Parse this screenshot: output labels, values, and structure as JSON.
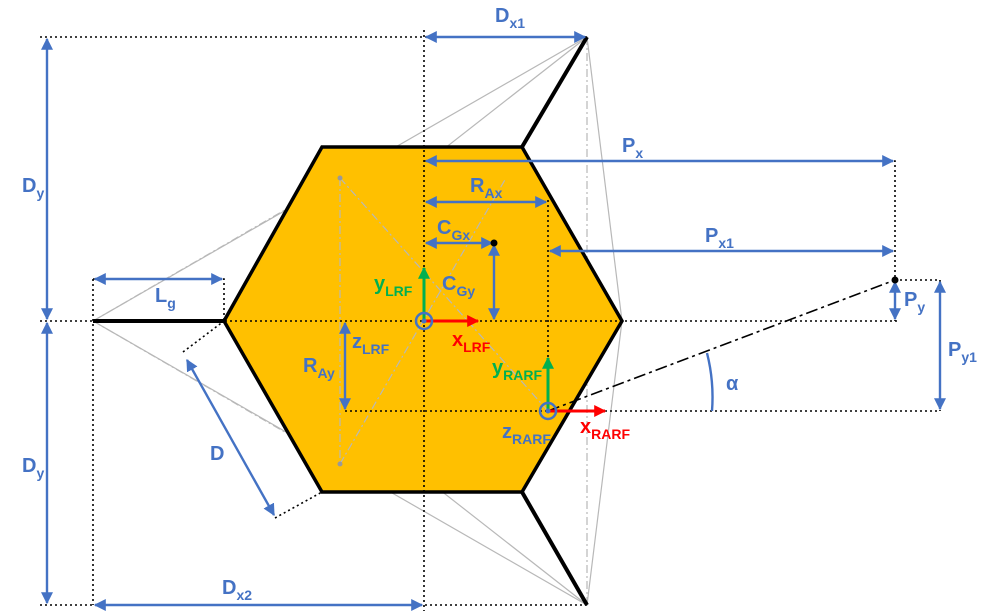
{
  "labels": {
    "dx1": {
      "text": "D",
      "sub": "x1"
    },
    "dy_top": {
      "text": "D",
      "sub": "y"
    },
    "dy_bottom": {
      "text": "D",
      "sub": "y"
    },
    "px": {
      "text": "P",
      "sub": "x"
    },
    "rax": {
      "text": "R",
      "sub": "Ax"
    },
    "cgx": {
      "text": "C",
      "sub": "Gx"
    },
    "cgy": {
      "text": "C",
      "sub": "Gy"
    },
    "px1": {
      "text": "P",
      "sub": "x1"
    },
    "lg": {
      "text": "L",
      "sub": "g"
    },
    "py": {
      "text": "P",
      "sub": "y"
    },
    "py1": {
      "text": "P",
      "sub": "y1"
    },
    "ray": {
      "text": "R",
      "sub": "Ay"
    },
    "d": {
      "text": "D"
    },
    "dx2": {
      "text": "D",
      "sub": "x2"
    },
    "alpha": {
      "text": "α"
    },
    "y_lrf": {
      "text": "y",
      "sub": "LRF"
    },
    "x_lrf": {
      "text": "x",
      "sub": "LRF"
    },
    "z_lrf": {
      "text": "z",
      "sub": "LRF"
    },
    "y_rarf": {
      "text": "y",
      "sub": "RARF"
    },
    "x_rarf": {
      "text": "x",
      "sub": "RARF"
    },
    "z_rarf": {
      "text": "z",
      "sub": "RARF"
    }
  }
}
